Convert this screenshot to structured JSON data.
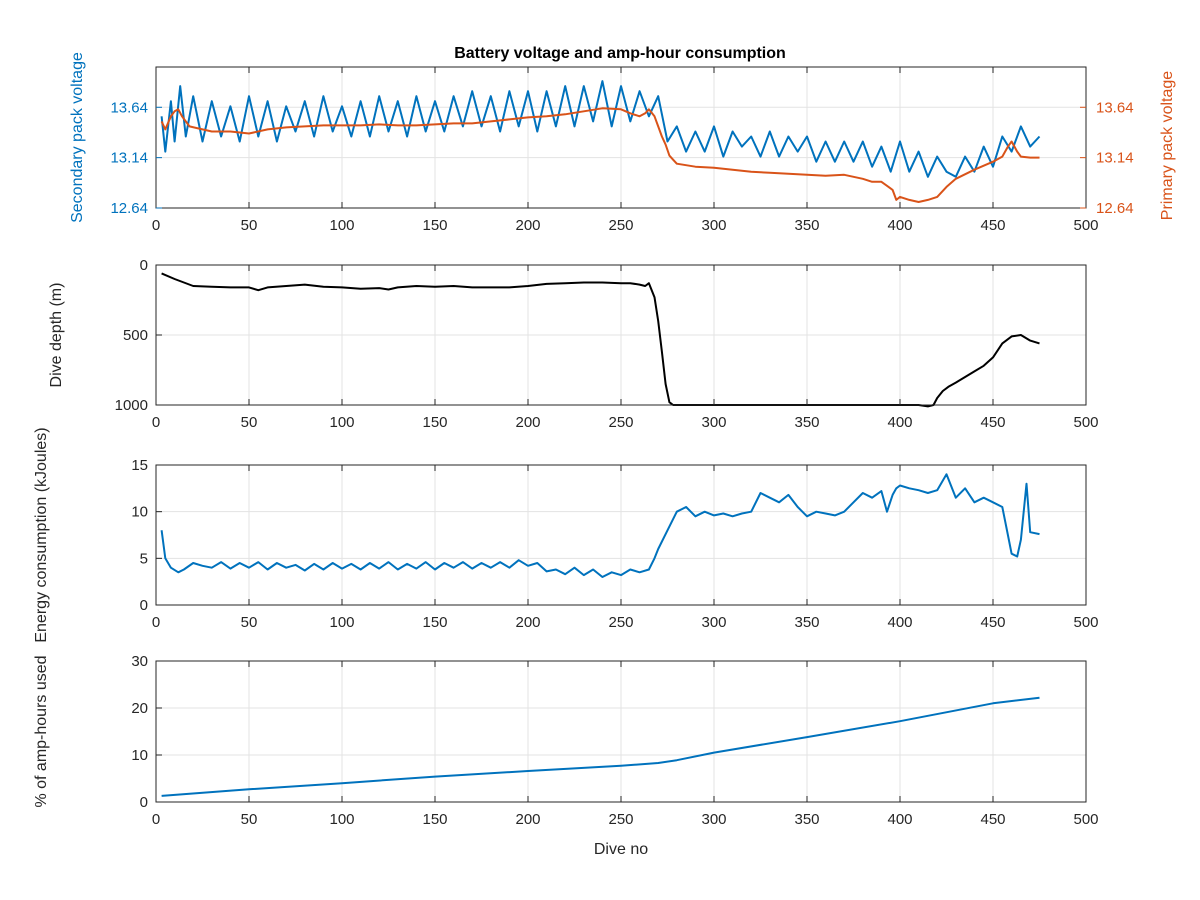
{
  "figure": {
    "title": "Battery voltage and amp-hour consumption",
    "colors": {
      "blue": "#0072BD",
      "orange": "#D95319",
      "black": "#000000",
      "grid": "#e3e3e3",
      "axis": "#262626"
    }
  },
  "chart_data": [
    {
      "type": "line",
      "title": "Battery voltage and amp-hour consumption",
      "xlabel": "",
      "ylabel": "Secondary pack voltage",
      "ylabel_right": "Primary pack voltage",
      "xlim": [
        0,
        500
      ],
      "ylim": [
        12.64,
        14.04
      ],
      "ylim_right": [
        12.64,
        14.04
      ],
      "xticks": [
        0,
        50,
        100,
        150,
        200,
        250,
        300,
        350,
        400,
        450,
        500
      ],
      "yticks": [
        12.64,
        13.14,
        13.64
      ],
      "yticks_right": [
        12.64,
        13.14,
        13.64
      ],
      "grid": true,
      "series": [
        {
          "axis": "left",
          "color": "#0072BD",
          "x": [
            3,
            5,
            8,
            10,
            13,
            16,
            20,
            25,
            30,
            35,
            40,
            45,
            50,
            55,
            60,
            65,
            70,
            75,
            80,
            85,
            90,
            95,
            100,
            105,
            110,
            115,
            120,
            125,
            130,
            135,
            140,
            145,
            150,
            155,
            160,
            165,
            170,
            175,
            180,
            185,
            190,
            195,
            200,
            205,
            210,
            215,
            220,
            225,
            230,
            235,
            240,
            245,
            250,
            255,
            260,
            265,
            270,
            275,
            280,
            285,
            290,
            295,
            300,
            305,
            310,
            315,
            320,
            325,
            330,
            335,
            340,
            345,
            350,
            355,
            360,
            365,
            370,
            375,
            380,
            385,
            390,
            395,
            400,
            405,
            410,
            415,
            420,
            425,
            430,
            435,
            440,
            445,
            450,
            455,
            460,
            465,
            470,
            475
          ],
          "y": [
            13.55,
            13.2,
            13.7,
            13.3,
            13.85,
            13.35,
            13.75,
            13.3,
            13.7,
            13.35,
            13.65,
            13.3,
            13.75,
            13.35,
            13.7,
            13.3,
            13.65,
            13.4,
            13.7,
            13.35,
            13.75,
            13.4,
            13.65,
            13.35,
            13.7,
            13.35,
            13.75,
            13.4,
            13.7,
            13.35,
            13.75,
            13.4,
            13.7,
            13.4,
            13.75,
            13.45,
            13.8,
            13.45,
            13.75,
            13.4,
            13.8,
            13.45,
            13.8,
            13.4,
            13.8,
            13.45,
            13.85,
            13.45,
            13.85,
            13.5,
            13.9,
            13.45,
            13.85,
            13.5,
            13.8,
            13.55,
            13.75,
            13.3,
            13.45,
            13.2,
            13.4,
            13.2,
            13.45,
            13.15,
            13.4,
            13.25,
            13.35,
            13.15,
            13.4,
            13.15,
            13.35,
            13.2,
            13.35,
            13.1,
            13.3,
            13.1,
            13.3,
            13.1,
            13.3,
            13.05,
            13.25,
            13.0,
            13.3,
            13.0,
            13.2,
            12.95,
            13.15,
            13.0,
            12.95,
            13.15,
            13.0,
            13.25,
            13.05,
            13.35,
            13.2,
            13.45,
            13.25,
            13.35
          ]
        },
        {
          "axis": "right",
          "color": "#D95319",
          "x": [
            3,
            5,
            8,
            10,
            12,
            14,
            18,
            25,
            30,
            40,
            50,
            60,
            70,
            80,
            90,
            100,
            110,
            120,
            130,
            140,
            150,
            160,
            170,
            180,
            190,
            200,
            210,
            220,
            230,
            240,
            250,
            255,
            260,
            263,
            265,
            268,
            270,
            272,
            274,
            276,
            278,
            280,
            290,
            300,
            310,
            320,
            330,
            340,
            350,
            360,
            370,
            380,
            385,
            390,
            393,
            396,
            398,
            400,
            405,
            410,
            415,
            420,
            425,
            430,
            440,
            450,
            455,
            458,
            460,
            463,
            465,
            470,
            475
          ],
          "y": [
            13.5,
            13.42,
            13.55,
            13.6,
            13.62,
            13.55,
            13.45,
            13.42,
            13.4,
            13.4,
            13.38,
            13.42,
            13.44,
            13.45,
            13.46,
            13.46,
            13.46,
            13.47,
            13.46,
            13.46,
            13.47,
            13.48,
            13.48,
            13.5,
            13.52,
            13.54,
            13.55,
            13.57,
            13.6,
            13.63,
            13.62,
            13.58,
            13.55,
            13.58,
            13.62,
            13.55,
            13.45,
            13.35,
            13.27,
            13.16,
            13.12,
            13.08,
            13.05,
            13.04,
            13.02,
            13.0,
            12.99,
            12.98,
            12.97,
            12.96,
            12.97,
            12.93,
            12.9,
            12.9,
            12.86,
            12.82,
            12.72,
            12.75,
            12.72,
            12.7,
            12.72,
            12.75,
            12.85,
            12.93,
            13.02,
            13.1,
            13.15,
            13.25,
            13.3,
            13.2,
            13.15,
            13.14,
            13.14
          ]
        }
      ]
    },
    {
      "type": "line",
      "xlabel": "",
      "ylabel": "Dive depth (m)",
      "xlim": [
        0,
        500
      ],
      "ylim": [
        0,
        1000
      ],
      "y_reversed": true,
      "xticks": [
        0,
        50,
        100,
        150,
        200,
        250,
        300,
        350,
        400,
        450,
        500
      ],
      "yticks": [
        0,
        500,
        1000
      ],
      "grid": true,
      "series": [
        {
          "color": "#000000",
          "x": [
            3,
            10,
            20,
            30,
            40,
            50,
            55,
            60,
            70,
            80,
            90,
            100,
            110,
            120,
            125,
            130,
            140,
            150,
            160,
            170,
            180,
            190,
            200,
            210,
            220,
            230,
            240,
            250,
            255,
            260,
            263,
            265,
            268,
            270,
            272,
            274,
            276,
            278,
            280,
            300,
            320,
            340,
            360,
            380,
            400,
            410,
            415,
            418,
            420,
            423,
            426,
            430,
            435,
            440,
            445,
            450,
            455,
            460,
            465,
            470,
            475
          ],
          "y": [
            60,
            100,
            150,
            155,
            160,
            160,
            180,
            160,
            150,
            140,
            155,
            160,
            170,
            165,
            175,
            160,
            150,
            155,
            150,
            160,
            160,
            160,
            150,
            135,
            130,
            125,
            125,
            130,
            130,
            140,
            150,
            130,
            230,
            400,
            620,
            850,
            980,
            1000,
            1000,
            1000,
            1000,
            1000,
            1000,
            1000,
            1000,
            1000,
            1010,
            1000,
            950,
            900,
            870,
            840,
            800,
            760,
            720,
            660,
            560,
            510,
            500,
            540,
            560
          ]
        }
      ]
    },
    {
      "type": "line",
      "xlabel": "",
      "ylabel": "Energy consumption (kJoules)",
      "xlim": [
        0,
        500
      ],
      "ylim": [
        0,
        15
      ],
      "xticks": [
        0,
        50,
        100,
        150,
        200,
        250,
        300,
        350,
        400,
        450,
        500
      ],
      "yticks": [
        0,
        5,
        10,
        15
      ],
      "grid": true,
      "series": [
        {
          "color": "#0072BD",
          "x": [
            3,
            5,
            8,
            12,
            15,
            20,
            25,
            30,
            35,
            40,
            45,
            50,
            55,
            60,
            65,
            70,
            75,
            80,
            85,
            90,
            95,
            100,
            105,
            110,
            115,
            120,
            125,
            130,
            135,
            140,
            145,
            150,
            155,
            160,
            165,
            170,
            175,
            180,
            185,
            190,
            195,
            200,
            205,
            210,
            215,
            220,
            225,
            230,
            235,
            240,
            245,
            250,
            255,
            260,
            265,
            268,
            270,
            275,
            280,
            285,
            290,
            295,
            300,
            305,
            310,
            315,
            320,
            325,
            330,
            335,
            340,
            345,
            350,
            355,
            360,
            365,
            370,
            375,
            380,
            385,
            390,
            393,
            396,
            398,
            400,
            405,
            410,
            415,
            420,
            425,
            430,
            435,
            440,
            445,
            450,
            455,
            458,
            460,
            463,
            465,
            468,
            470,
            475
          ],
          "y": [
            8,
            5,
            4,
            3.5,
            3.8,
            4.5,
            4.2,
            4.0,
            4.6,
            3.9,
            4.5,
            4.0,
            4.6,
            3.8,
            4.5,
            4.0,
            4.3,
            3.7,
            4.4,
            3.8,
            4.5,
            3.9,
            4.4,
            3.8,
            4.5,
            3.9,
            4.6,
            3.8,
            4.4,
            3.9,
            4.6,
            3.8,
            4.5,
            4.0,
            4.6,
            3.9,
            4.5,
            4.0,
            4.6,
            4.0,
            4.8,
            4.2,
            4.5,
            3.6,
            3.8,
            3.3,
            4.0,
            3.2,
            3.8,
            3.0,
            3.5,
            3.2,
            3.8,
            3.5,
            3.8,
            5.0,
            6.0,
            8.0,
            10.0,
            10.5,
            9.5,
            10.0,
            9.6,
            9.8,
            9.5,
            9.8,
            10.0,
            12.0,
            11.5,
            11.0,
            11.8,
            10.5,
            9.5,
            10.0,
            9.8,
            9.6,
            10.0,
            11.0,
            12.0,
            11.5,
            12.2,
            10.0,
            11.8,
            12.5,
            12.8,
            12.5,
            12.3,
            12.0,
            12.3,
            14.0,
            11.5,
            12.5,
            11.0,
            11.5,
            11.0,
            10.5,
            7.5,
            5.5,
            5.2,
            7.0,
            13.0,
            7.8,
            7.6
          ]
        }
      ]
    },
    {
      "type": "line",
      "xlabel": "Dive no",
      "ylabel": "% of amp-hours used",
      "xlim": [
        0,
        500
      ],
      "ylim": [
        0,
        30
      ],
      "xticks": [
        0,
        50,
        100,
        150,
        200,
        250,
        300,
        350,
        400,
        450,
        500
      ],
      "yticks": [
        0,
        10,
        20,
        30
      ],
      "grid": true,
      "series": [
        {
          "color": "#0072BD",
          "x": [
            3,
            50,
            100,
            150,
            200,
            250,
            270,
            280,
            300,
            350,
            400,
            450,
            475
          ],
          "y": [
            1.3,
            2.7,
            4.0,
            5.4,
            6.6,
            7.7,
            8.3,
            8.9,
            10.5,
            13.8,
            17.2,
            21.0,
            22.2
          ]
        }
      ]
    }
  ]
}
